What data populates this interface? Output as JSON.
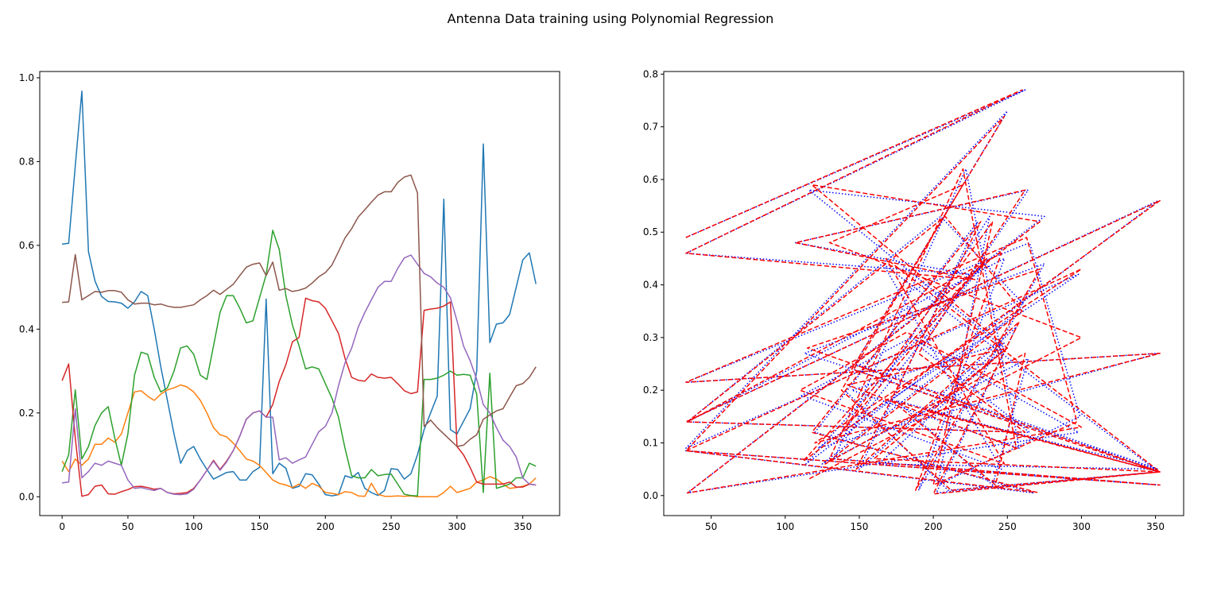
{
  "figure": {
    "title": "Antenna Data training using Polynomial Regression"
  },
  "chart_data": [
    {
      "type": "line",
      "title": "",
      "xlabel": "",
      "ylabel": "",
      "xlim": [
        -17,
        378
      ],
      "ylim": [
        -0.045,
        1.015
      ],
      "xticks": [
        0,
        50,
        100,
        150,
        200,
        250,
        300,
        350
      ],
      "yticks": [
        0.0,
        0.2,
        0.4,
        0.6,
        0.8,
        1.0
      ],
      "grid": false,
      "x": [
        0,
        5,
        10,
        15,
        20,
        25,
        30,
        35,
        40,
        45,
        50,
        55,
        60,
        65,
        70,
        75,
        80,
        85,
        90,
        95,
        100,
        105,
        110,
        115,
        120,
        125,
        130,
        135,
        140,
        145,
        150,
        155,
        160,
        165,
        170,
        175,
        180,
        185,
        190,
        195,
        200,
        205,
        210,
        215,
        220,
        225,
        230,
        235,
        240,
        245,
        250,
        255,
        260,
        265,
        270,
        275,
        280,
        285,
        290,
        295,
        300,
        305,
        310,
        315,
        320,
        325,
        330,
        335,
        340,
        345,
        350,
        355,
        360
      ],
      "series": [
        {
          "color": "#1f77b4",
          "values": [
            0.603,
            0.605,
            0.79,
            0.968,
            0.585,
            0.515,
            0.478,
            0.466,
            0.465,
            0.462,
            0.45,
            0.465,
            0.49,
            0.48,
            0.4,
            0.31,
            0.23,
            0.15,
            0.08,
            0.11,
            0.12,
            0.09,
            0.065,
            0.042,
            0.05,
            0.058,
            0.06,
            0.04,
            0.04,
            0.06,
            0.07,
            0.472,
            0.055,
            0.08,
            0.068,
            0.02,
            0.025,
            0.055,
            0.052,
            0.03,
            0.005,
            0.002,
            0.005,
            0.05,
            0.045,
            0.058,
            0.02,
            0.01,
            0.003,
            0.015,
            0.067,
            0.065,
            0.042,
            0.055,
            0.1,
            0.16,
            0.2,
            0.24,
            0.71,
            0.16,
            0.15,
            0.18,
            0.21,
            0.3,
            0.842,
            0.368,
            0.412,
            0.415,
            0.435,
            0.5,
            0.565,
            0.582,
            0.508
          ]
        },
        {
          "color": "#ff7f0e",
          "values": [
            0.085,
            0.06,
            0.09,
            0.075,
            0.09,
            0.125,
            0.125,
            0.14,
            0.13,
            0.15,
            0.2,
            0.25,
            0.253,
            0.24,
            0.23,
            0.245,
            0.255,
            0.26,
            0.267,
            0.262,
            0.25,
            0.23,
            0.2,
            0.165,
            0.148,
            0.143,
            0.128,
            0.11,
            0.09,
            0.085,
            0.075,
            0.058,
            0.04,
            0.032,
            0.028,
            0.022,
            0.03,
            0.02,
            0.032,
            0.025,
            0.01,
            0.008,
            0.005,
            0.012,
            0.01,
            0.002,
            0.001,
            0.032,
            0.006,
            0.001,
            0.001,
            0.002,
            0.001,
            0.002,
            0.0,
            0.0,
            0.0,
            0.0,
            0.01,
            0.025,
            0.01,
            0.015,
            0.02,
            0.035,
            0.04,
            0.048,
            0.042,
            0.03,
            0.02,
            0.022,
            0.025,
            0.03,
            0.045
          ]
        },
        {
          "color": "#2ca02c",
          "values": [
            0.06,
            0.1,
            0.255,
            0.09,
            0.12,
            0.17,
            0.2,
            0.215,
            0.14,
            0.075,
            0.15,
            0.29,
            0.345,
            0.34,
            0.285,
            0.25,
            0.26,
            0.3,
            0.355,
            0.36,
            0.34,
            0.29,
            0.28,
            0.36,
            0.44,
            0.48,
            0.48,
            0.45,
            0.415,
            0.42,
            0.475,
            0.53,
            0.636,
            0.59,
            0.48,
            0.41,
            0.36,
            0.305,
            0.31,
            0.305,
            0.27,
            0.235,
            0.19,
            0.115,
            0.05,
            0.045,
            0.045,
            0.065,
            0.05,
            0.053,
            0.054,
            0.03,
            0.006,
            0.003,
            0.002,
            0.28,
            0.28,
            0.283,
            0.29,
            0.3,
            0.29,
            0.292,
            0.29,
            0.245,
            0.01,
            0.295,
            0.02,
            0.025,
            0.03,
            0.045,
            0.045,
            0.08,
            0.073
          ]
        },
        {
          "color": "#d62728",
          "values": [
            0.277,
            0.317,
            0.14,
            0.001,
            0.005,
            0.025,
            0.028,
            0.007,
            0.006,
            0.012,
            0.017,
            0.024,
            0.025,
            0.022,
            0.018,
            0.02,
            0.01,
            0.007,
            0.008,
            0.01,
            0.02,
            0.04,
            0.063,
            0.087,
            0.065,
            0.085,
            0.11,
            0.145,
            0.185,
            0.2,
            0.205,
            0.19,
            0.22,
            0.275,
            0.315,
            0.37,
            0.38,
            0.474,
            0.468,
            0.465,
            0.45,
            0.42,
            0.39,
            0.33,
            0.285,
            0.278,
            0.276,
            0.293,
            0.285,
            0.283,
            0.285,
            0.27,
            0.253,
            0.246,
            0.25,
            0.445,
            0.448,
            0.45,
            0.455,
            0.465,
            0.12,
            0.1,
            0.07,
            0.035,
            0.03,
            0.03,
            0.03,
            0.03,
            0.035,
            0.023,
            0.023,
            0.03,
            0.028
          ]
        },
        {
          "color": "#9467bd",
          "values": [
            0.033,
            0.035,
            0.21,
            0.045,
            0.06,
            0.08,
            0.075,
            0.085,
            0.08,
            0.075,
            0.04,
            0.02,
            0.022,
            0.018,
            0.015,
            0.02,
            0.01,
            0.006,
            0.005,
            0.007,
            0.018,
            0.04,
            0.063,
            0.085,
            0.063,
            0.083,
            0.11,
            0.145,
            0.185,
            0.2,
            0.205,
            0.19,
            0.19,
            0.088,
            0.093,
            0.08,
            0.088,
            0.095,
            0.125,
            0.155,
            0.168,
            0.2,
            0.265,
            0.32,
            0.355,
            0.405,
            0.44,
            0.47,
            0.5,
            0.514,
            0.514,
            0.545,
            0.57,
            0.577,
            0.555,
            0.533,
            0.525,
            0.51,
            0.5,
            0.475,
            0.42,
            0.36,
            0.325,
            0.28,
            0.22,
            0.2,
            0.165,
            0.135,
            0.12,
            0.095,
            0.045,
            0.03,
            0.028
          ]
        },
        {
          "color": "#8c564b",
          "values": [
            0.464,
            0.465,
            0.578,
            0.47,
            0.48,
            0.49,
            0.488,
            0.492,
            0.492,
            0.488,
            0.47,
            0.46,
            0.462,
            0.462,
            0.458,
            0.46,
            0.455,
            0.452,
            0.452,
            0.455,
            0.458,
            0.47,
            0.48,
            0.493,
            0.483,
            0.495,
            0.507,
            0.528,
            0.548,
            0.555,
            0.558,
            0.528,
            0.56,
            0.493,
            0.497,
            0.49,
            0.493,
            0.498,
            0.51,
            0.525,
            0.535,
            0.553,
            0.585,
            0.618,
            0.64,
            0.668,
            0.685,
            0.703,
            0.72,
            0.728,
            0.728,
            0.75,
            0.763,
            0.768,
            0.725,
            0.168,
            0.183,
            0.165,
            0.15,
            0.135,
            0.12,
            0.123,
            0.137,
            0.148,
            0.185,
            0.195,
            0.205,
            0.21,
            0.238,
            0.265,
            0.27,
            0.285,
            0.31
          ]
        }
      ]
    },
    {
      "type": "line",
      "title": "",
      "xlabel": "",
      "ylabel": "",
      "xlim": [
        18,
        369
      ],
      "ylim": [
        -0.038,
        0.805
      ],
      "xticks": [
        50,
        100,
        150,
        200,
        250,
        300,
        350
      ],
      "yticks": [
        0.0,
        0.1,
        0.2,
        0.3,
        0.4,
        0.5,
        0.6,
        0.7,
        0.8
      ],
      "grid": false,
      "series": [
        {
          "color": "#0000ff",
          "linestyle": "dotted",
          "x": [
            33,
            262,
            33,
            224,
            107,
            264,
            192,
            265,
            33,
            352,
            114,
            234,
            141,
            238,
            203,
            299,
            265,
            33,
            352,
            122,
            298,
            33,
            250,
            147,
            352,
            163,
            248,
            116,
            275,
            34,
            298,
            185,
            111,
            246,
            166,
            352,
            202,
            256,
            150,
            230,
            120,
            268,
            33,
            352,
            133,
            222,
            258,
            145,
            248,
            198,
            352,
            113,
            275,
            190,
            248,
            34,
            205,
            262,
            125,
            264,
            240,
            175,
            352,
            210,
            140
          ],
          "y": [
            0.49,
            0.77,
            0.46,
            0.42,
            0.48,
            0.58,
            0.28,
            0.12,
            0.14,
            0.56,
            0.06,
            0.44,
            0.11,
            0.53,
            0.02,
            0.15,
            0.48,
            0.215,
            0.27,
            0.09,
            0.42,
            0.09,
            0.73,
            0.25,
            0.05,
            0.06,
            0.28,
            0.58,
            0.53,
            0.005,
            0.12,
            0.3,
            0.19,
            0.05,
            0.44,
            0.045,
            0.005,
            0.32,
            0.05,
            0.52,
            0.12,
            0.005,
            0.085,
            0.02,
            0.07,
            0.62,
            0.09,
            0.2,
            0.29,
            0.16,
            0.05,
            0.27,
            0.44,
            0.01,
            0.45,
            0.14,
            0.53,
            0.36,
            0.06,
            0.26,
            0.02,
            0.18,
            0.045,
            0.01,
            0.2
          ]
        },
        {
          "color": "#ff0000",
          "linestyle": "dashed",
          "x": [
            33,
            260,
            33,
            228,
            107,
            262,
            190,
            262,
            33,
            353,
            112,
            236,
            138,
            240,
            200,
            297,
            263,
            33,
            353,
            120,
            300,
            33,
            248,
            145,
            353,
            160,
            250,
            118,
            272,
            34,
            300,
            182,
            110,
            248,
            168,
            353,
            200,
            258,
            148,
            232,
            118,
            270,
            33,
            353,
            130,
            220,
            256,
            142,
            250,
            196,
            353,
            115,
            272,
            188,
            246,
            34,
            208,
            260,
            127,
            262,
            242,
            172,
            353,
            212,
            138,
            220,
            130,
            300,
            115
          ],
          "y": [
            0.49,
            0.77,
            0.46,
            0.41,
            0.48,
            0.58,
            0.27,
            0.12,
            0.14,
            0.56,
            0.065,
            0.45,
            0.12,
            0.52,
            0.02,
            0.14,
            0.49,
            0.215,
            0.27,
            0.1,
            0.43,
            0.085,
            0.72,
            0.24,
            0.045,
            0.07,
            0.28,
            0.59,
            0.52,
            0.005,
            0.13,
            0.31,
            0.2,
            0.06,
            0.45,
            0.045,
            0.003,
            0.33,
            0.05,
            0.52,
            0.12,
            0.006,
            0.085,
            0.02,
            0.07,
            0.62,
            0.09,
            0.21,
            0.28,
            0.16,
            0.045,
            0.28,
            0.43,
            0.01,
            0.46,
            0.14,
            0.53,
            0.35,
            0.06,
            0.27,
            0.02,
            0.18,
            0.045,
            0.01,
            0.2,
            0.59,
            0.48,
            0.3,
            0.03
          ]
        }
      ]
    }
  ]
}
